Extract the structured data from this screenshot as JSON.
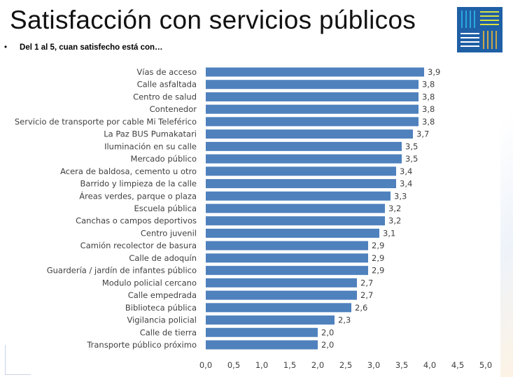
{
  "header": {
    "title": "Satisfacción con servicios públicos",
    "subtitle": "Del 1 al 5, cuan satisfecho está con…",
    "bullet": "•"
  },
  "colors": {
    "bar": "#4f81bd",
    "logo_bg": "#1f5fa5"
  },
  "chart_data": {
    "type": "bar",
    "orientation": "horizontal",
    "categories": [
      "Vías de acceso",
      "Calle asfaltada",
      "Centro de salud",
      "Contenedor",
      "Servicio de transporte por cable Mi Teleférico",
      "La Paz BUS Pumakatari",
      "Iluminación en su calle",
      "Mercado público",
      "Acera de baldosa, cemento u otro",
      "Barrido y limpieza de la calle",
      "Áreas verdes, parque o plaza",
      "Escuela pública",
      "Canchas o campos deportivos",
      "Centro juvenil",
      "Camión recolector de basura",
      "Calle de adoquín",
      "Guardería / jardín de infantes público",
      "Modulo policial cercano",
      "Calle empedrada",
      "Biblioteca pública",
      "Vigilancia policial",
      "Calle de tierra",
      "Transporte público próximo"
    ],
    "values": [
      3.9,
      3.8,
      3.8,
      3.8,
      3.8,
      3.7,
      3.5,
      3.5,
      3.4,
      3.4,
      3.3,
      3.2,
      3.2,
      3.1,
      2.9,
      2.9,
      2.9,
      2.7,
      2.7,
      2.6,
      2.3,
      2.0,
      2.0
    ],
    "labels": [
      "3,9",
      "3,8",
      "3,8",
      "3,8",
      "3,8",
      "3,7",
      "3,5",
      "3,5",
      "3,4",
      "3,4",
      "3,3",
      "3,2",
      "3,2",
      "3,1",
      "2,9",
      "2,9",
      "2,9",
      "2,7",
      "2,7",
      "2,6",
      "2,3",
      "2,0",
      "2,0"
    ],
    "xlim": [
      0,
      5
    ],
    "xticks": [
      "0,0",
      "0,5",
      "1,0",
      "1,5",
      "2,0",
      "2,5",
      "3,0",
      "3,5",
      "4,0",
      "4,5",
      "5,0"
    ],
    "grid": false,
    "legend": "none"
  }
}
